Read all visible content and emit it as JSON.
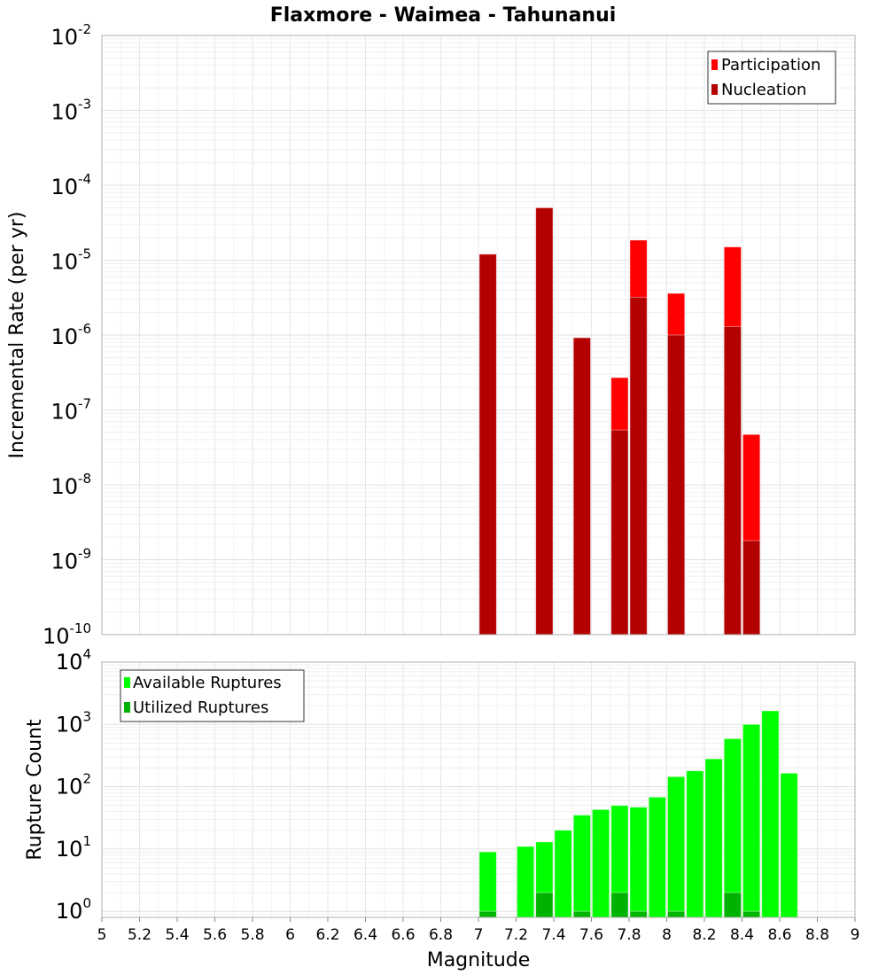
{
  "chart_data": [
    {
      "type": "bar",
      "title": "Flaxmore - Waimea - Tahunanui",
      "xlabel": "Magnitude",
      "ylabel": "Incremental Rate (per yr)",
      "yscale": "log",
      "ylim": [
        1e-10,
        0.01
      ],
      "xlim": [
        5,
        9
      ],
      "bin_width": 0.1,
      "grid": true,
      "legend_position": "top-right",
      "ytick_exponents": [
        "-2",
        "-3",
        "-4",
        "-5",
        "-6",
        "-7",
        "-8",
        "-9",
        "-10"
      ],
      "series": [
        {
          "name": "Participation",
          "color": "#ff0000",
          "x": [
            7.05,
            7.35,
            7.55,
            7.75,
            7.85,
            8.05,
            8.35,
            8.45
          ],
          "values": [
            1.2e-05,
            5e-05,
            9.2e-07,
            2.7e-07,
            1.85e-05,
            3.6e-06,
            1.5e-05,
            4.7e-08
          ]
        },
        {
          "name": "Nucleation",
          "color": "#b30000",
          "x": [
            7.05,
            7.35,
            7.55,
            7.75,
            7.85,
            8.05,
            8.35,
            8.45
          ],
          "values": [
            1.2e-05,
            5e-05,
            9.2e-07,
            5.4e-08,
            3.2e-06,
            1e-06,
            1.3e-06,
            1.8e-09
          ]
        }
      ]
    },
    {
      "type": "bar",
      "xlabel": "Magnitude",
      "ylabel": "Rupture Count",
      "yscale": "log",
      "ylim": [
        0.8,
        10000.0
      ],
      "xlim": [
        5,
        9
      ],
      "bin_width": 0.1,
      "grid": true,
      "legend_position": "top-left",
      "ytick_exponents": [
        "4",
        "3",
        "2",
        "1",
        "0"
      ],
      "xticks": [
        "5",
        "5.2",
        "5.4",
        "5.6",
        "5.8",
        "6",
        "6.2",
        "6.4",
        "6.6",
        "6.8",
        "7",
        "7.2",
        "7.4",
        "7.6",
        "7.8",
        "8",
        "8.2",
        "8.4",
        "8.6",
        "8.8",
        "9"
      ],
      "series": [
        {
          "name": "Available Ruptures",
          "color": "#00ff00",
          "x": [
            7.05,
            7.25,
            7.35,
            7.45,
            7.55,
            7.65,
            7.75,
            7.85,
            7.95,
            8.05,
            8.15,
            8.25,
            8.35,
            8.45,
            8.55,
            8.65
          ],
          "values": [
            9,
            11,
            13,
            20,
            35,
            43,
            50,
            47,
            68,
            145,
            180,
            280,
            590,
            1000,
            1650,
            165
          ]
        },
        {
          "name": "Utilized Ruptures",
          "color": "#00b300",
          "x": [
            7.05,
            7.35,
            7.55,
            7.75,
            7.85,
            8.05,
            8.35,
            8.45
          ],
          "values": [
            1,
            2,
            1,
            2,
            1,
            1,
            2,
            1
          ]
        }
      ]
    }
  ]
}
